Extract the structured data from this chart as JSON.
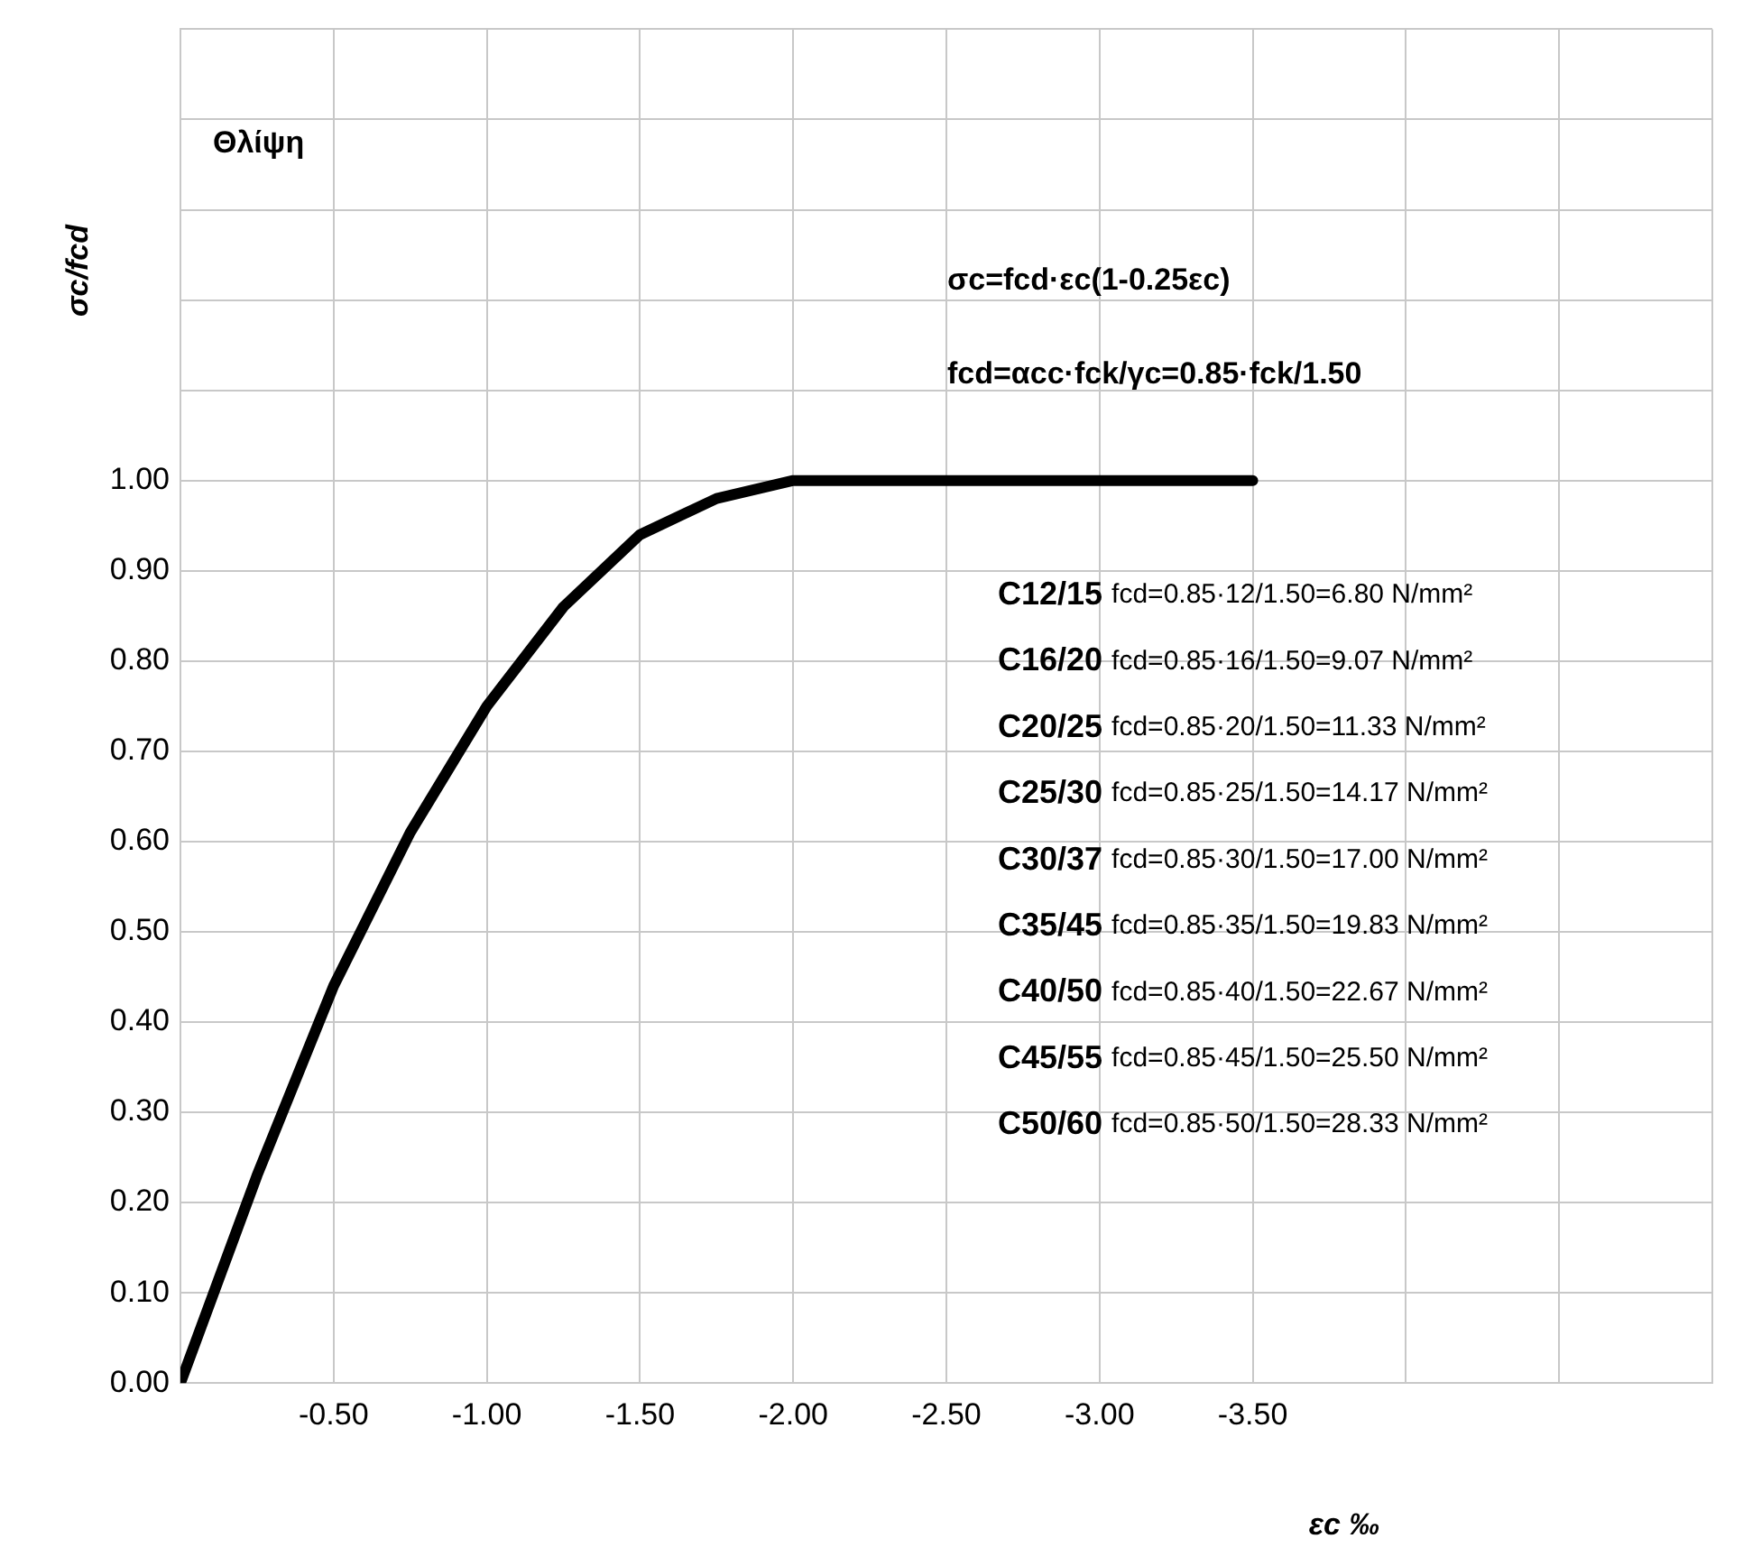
{
  "chart_data": {
    "type": "line",
    "ylabel": "σc/fcd",
    "xlabel": "εc ‰",
    "annotations": [
      "Θλίψη",
      "σc=fcd·εc(1-0.25εc)",
      "fcd=αcc·fck/γc=0.85·fck/1.50",
      "C12/15 fcd=0.85·12/1.50=6.80 N/mm²",
      "C16/20 fcd=0.85·16/1.50=9.07 N/mm²",
      "C20/25 fcd=0.85·20/1.50=11.33 N/mm²",
      "C25/30 fcd=0.85·25/1.50=14.17 N/mm²",
      "C30/37 fcd=0.85·30/1.50=17.00 N/mm²",
      "C35/45 fcd=0.85·35/1.50=19.83 N/mm²",
      "C40/50 fcd=0.85·40/1.50=22.67 N/mm²",
      "C45/55 fcd=0.85·45/1.50=25.50 N/mm²",
      "C50/60 fcd=0.85·50/1.50=28.33 N/mm²"
    ],
    "x": [
      0,
      -0.25,
      -0.5,
      -0.75,
      -1,
      -1.25,
      -1.5,
      -1.75,
      -2,
      -3.5
    ],
    "series": [
      {
        "color": "#000000",
        "values": [
          0,
          0.23,
          0.44,
          0.61,
          0.75,
          0.86,
          0.94,
          0.98,
          1.0,
          1.0
        ]
      }
    ],
    "xlim": [
      0,
      -5
    ],
    "xticks": [
      {
        "value": 0,
        "label": null
      },
      {
        "value": -0.5,
        "label": "-0.50"
      },
      {
        "value": -1,
        "label": "-1.00"
      },
      {
        "value": -1.5,
        "label": "-1.50"
      },
      {
        "value": -2,
        "label": "-2.00"
      },
      {
        "value": -2.5,
        "label": "-2.50"
      },
      {
        "value": -3,
        "label": "-3.00"
      },
      {
        "value": -3.5,
        "label": "-3.50"
      },
      {
        "value": -4,
        "label": null
      },
      {
        "value": -4.5,
        "label": null
      },
      {
        "value": -5,
        "label": null
      }
    ],
    "ylim": [
      0,
      1.5
    ],
    "yticks": [
      {
        "value": 0,
        "label": "0.00"
      },
      {
        "value": 0.1,
        "label": "0.10"
      },
      {
        "value": 0.2,
        "label": "0.20"
      },
      {
        "value": 0.3,
        "label": "0.30"
      },
      {
        "value": 0.4,
        "label": "0.40"
      },
      {
        "value": 0.5,
        "label": "0.50"
      },
      {
        "value": 0.6,
        "label": "0.60"
      },
      {
        "value": 0.7,
        "label": "0.70"
      },
      {
        "value": 0.8,
        "label": "0.80"
      },
      {
        "value": 0.9,
        "label": "0.90"
      },
      {
        "value": 1,
        "label": "1.00"
      },
      {
        "value": 1.1,
        "label": null
      },
      {
        "value": 1.2,
        "label": null
      },
      {
        "value": 1.3,
        "label": null
      },
      {
        "value": 1.4,
        "label": null
      },
      {
        "value": 1.5,
        "label": null
      }
    ],
    "grid": true,
    "legend": false,
    "marker": "none",
    "line_style": "solid"
  }
}
